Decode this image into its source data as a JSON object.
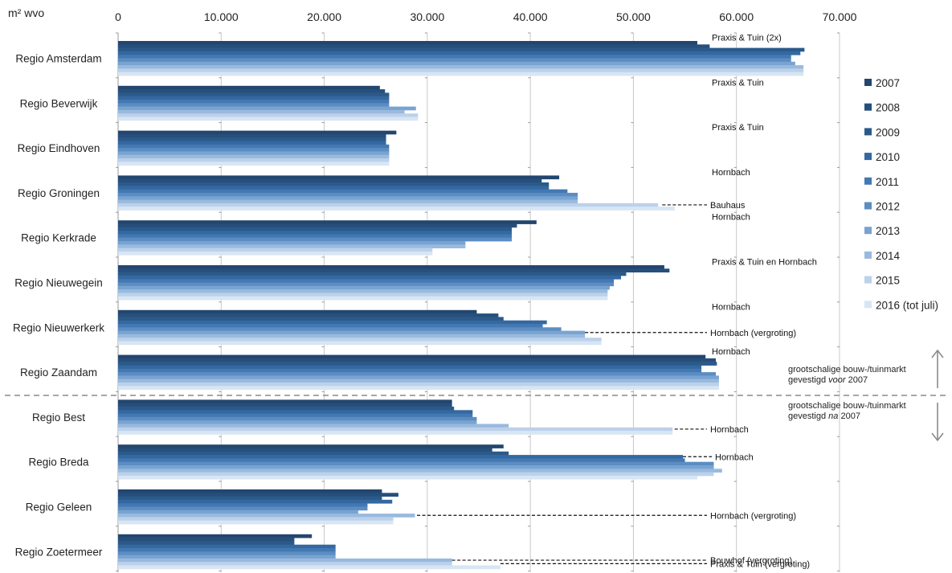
{
  "chart_data": {
    "type": "bar",
    "orientation": "horizontal",
    "unit_label": "m² wvo",
    "xlim": [
      0,
      70000
    ],
    "x_ticks": [
      0,
      10000,
      20000,
      30000,
      40000,
      50000,
      60000,
      70000
    ],
    "x_tick_labels": [
      "0",
      "10.000",
      "20.000",
      "30.000",
      "40.000",
      "50.000",
      "60.000",
      "70.000"
    ],
    "categories": [
      "Regio Amsterdam",
      "Regio Beverwijk",
      "Regio Eindhoven",
      "Regio Groningen",
      "Regio Kerkrade",
      "Regio Nieuwegein",
      "Regio Nieuwerkerk",
      "Regio Zaandam",
      "Regio Best",
      "Regio Breda",
      "Regio Geleen",
      "Regio Zoetermeer"
    ],
    "series": [
      {
        "name": "2007",
        "color": "#23466f",
        "values": [
          56200,
          25400,
          27000,
          42800,
          40600,
          53000,
          34800,
          57000,
          32400,
          37400,
          25600,
          18800
        ]
      },
      {
        "name": "2008",
        "color": "#274f7b",
        "values": [
          57400,
          25900,
          26000,
          41100,
          38700,
          53500,
          36900,
          58000,
          32400,
          36300,
          27200,
          17100
        ]
      },
      {
        "name": "2009",
        "color": "#2b5a8a",
        "values": [
          66600,
          26300,
          26000,
          41800,
          38200,
          49300,
          37400,
          58100,
          32600,
          37900,
          25600,
          17100
        ]
      },
      {
        "name": "2010",
        "color": "#3468a0",
        "values": [
          66200,
          26300,
          26000,
          41800,
          38200,
          48800,
          41600,
          56600,
          34400,
          54800,
          26600,
          21100
        ]
      },
      {
        "name": "2011",
        "color": "#4378b2",
        "values": [
          65300,
          26300,
          26300,
          43600,
          38200,
          48100,
          41200,
          56600,
          34400,
          55000,
          24200,
          21100
        ]
      },
      {
        "name": "2012",
        "color": "#5b8dc3",
        "values": [
          65300,
          26300,
          26300,
          44600,
          38200,
          48100,
          43000,
          58000,
          34800,
          57800,
          24200,
          21100
        ]
      },
      {
        "name": "2013",
        "color": "#79a3d0",
        "values": [
          65700,
          28900,
          26300,
          44600,
          33700,
          47700,
          45300,
          58300,
          34800,
          57800,
          23300,
          21100
        ]
      },
      {
        "name": "2014",
        "color": "#99bade",
        "values": [
          66500,
          27800,
          26300,
          44600,
          33700,
          47500,
          45300,
          58300,
          37900,
          58600,
          28800,
          32400
        ]
      },
      {
        "name": "2015",
        "color": "#bcd1ea",
        "values": [
          66500,
          29100,
          26300,
          52400,
          30500,
          47500,
          46900,
          58300,
          53800,
          57800,
          26700,
          32400
        ]
      },
      {
        "name": "2016 (tot juli)",
        "color": "#d8e5f4",
        "values": [
          66500,
          29100,
          26300,
          54000,
          30500,
          47500,
          46900,
          58300,
          53800,
          56200,
          26700,
          37100
        ]
      }
    ],
    "annotations": [
      {
        "category": "Regio Amsterdam",
        "label": "Praxis & Tuin (2x)",
        "leader": false
      },
      {
        "category": "Regio Beverwijk",
        "label": "Praxis & Tuin",
        "leader": false
      },
      {
        "category": "Regio Eindhoven",
        "label": "Praxis & Tuin",
        "leader": false
      },
      {
        "category": "Regio Groningen",
        "label": "Hornbach",
        "leader": false
      },
      {
        "category": "Regio Groningen",
        "label": "Bauhaus",
        "leader": true,
        "series": "2015",
        "leader_start": 52800
      },
      {
        "category": "Regio Kerkrade",
        "label": "Hornbach",
        "leader": false
      },
      {
        "category": "Regio Nieuwegein",
        "label": "Praxis & Tuin en Hornbach",
        "leader": false
      },
      {
        "category": "Regio Nieuwerkerk",
        "label": "Hornbach",
        "leader": false
      },
      {
        "category": "Regio Nieuwerkerk",
        "label": "Hornbach (vergroting)",
        "leader": true,
        "series": "2013",
        "leader_start": 45300
      },
      {
        "category": "Regio Zaandam",
        "label": "Hornbach",
        "leader": false
      },
      {
        "category": "Regio Best",
        "label": "Hornbach",
        "leader": true,
        "series": "2015",
        "leader_start": 54000
      },
      {
        "category": "Regio Breda",
        "label": "Hornbach",
        "leader": true,
        "series": "2010",
        "leader_start": 54800
      },
      {
        "category": "Regio Geleen",
        "label": "Hornbach (vergroting)",
        "leader": true,
        "series": "2014",
        "leader_start": 29000
      },
      {
        "category": "Regio Zoetermeer",
        "label": "Bouwhof (vergroting)",
        "leader": true,
        "series": "2014",
        "leader_start": 32400
      },
      {
        "category": "Regio Zoetermeer",
        "label": "Praxis & Tuin (vergroting)",
        "leader": true,
        "series": "2015",
        "leader_start": 37100
      }
    ],
    "group_split_after": "Regio Zaandam",
    "group_labels": {
      "above": [
        "grootschalige bouw-/tuinmarkt",
        "gevestigd ",
        "voor",
        " 2007"
      ],
      "below": [
        "grootschalige bouw-/tuinmarkt",
        "gevestigd ",
        "na",
        " 2007"
      ]
    },
    "grid": true,
    "legend_position": "right"
  }
}
